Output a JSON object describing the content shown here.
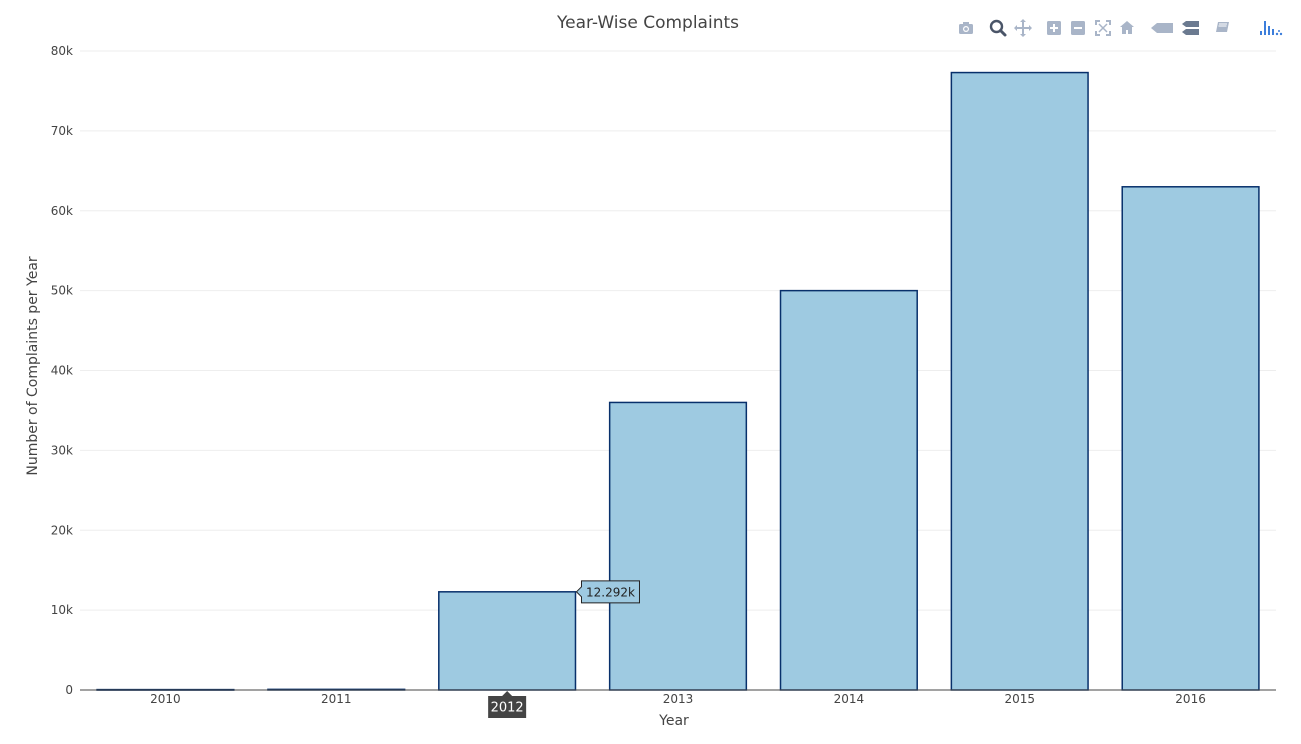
{
  "chart_data": {
    "type": "bar",
    "title": "Year-Wise Complaints",
    "xlabel": "Year",
    "ylabel": "Number of Complaints per Year",
    "categories": [
      "2010",
      "2011",
      "2012",
      "2013",
      "2014",
      "2015",
      "2016"
    ],
    "values": [
      50,
      80,
      12292,
      36000,
      50000,
      77300,
      63000
    ],
    "ylim": [
      0,
      80000
    ],
    "yticks": [
      0,
      10000,
      20000,
      30000,
      40000,
      50000,
      60000,
      70000,
      80000
    ],
    "ytick_labels": [
      "0",
      "10k",
      "20k",
      "30k",
      "40k",
      "50k",
      "60k",
      "70k",
      "80k"
    ],
    "grid": true,
    "colors": {
      "fill": "#9ecae1",
      "edge": "#08306b"
    },
    "hover": {
      "category": "2012",
      "value_label": "12.292k",
      "x_label": "2012"
    }
  },
  "modebar": {
    "icons": [
      "camera-icon",
      "zoom-icon",
      "pan-icon",
      "zoom-in-icon",
      "zoom-out-icon",
      "autoscale-icon",
      "reset-axes-icon",
      "spike-lines-icon",
      "compare-hover-icon",
      "closest-hover-icon",
      "plotly-logo"
    ]
  }
}
